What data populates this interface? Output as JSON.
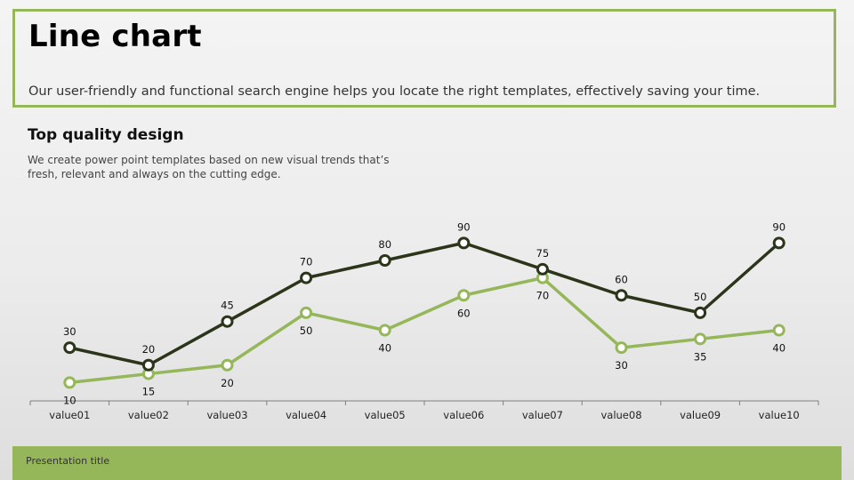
{
  "header": {
    "title": "Line chart",
    "subtitle": "Our user-friendly and functional search engine helps you locate the right templates, effectively saving your time."
  },
  "section": {
    "heading": "Top quality design",
    "body": "We create power point templates based on new visual trends that’s fresh, relevant and always on the cutting edge."
  },
  "footer": {
    "text": "Presentation title"
  },
  "colors": {
    "accent": "#95b75a",
    "dark_series": "#2b3519",
    "light_series": "#95b75a",
    "axis": "#7f7f7f"
  },
  "chart_data": {
    "type": "line",
    "categories": [
      "value01",
      "value02",
      "value03",
      "value04",
      "value05",
      "value06",
      "value07",
      "value08",
      "value09",
      "value10"
    ],
    "series": [
      {
        "values": [
          30,
          20,
          45,
          70,
          80,
          90,
          75,
          60,
          50,
          90
        ]
      },
      {
        "values": [
          10,
          15,
          20,
          50,
          40,
          60,
          70,
          30,
          35,
          40
        ]
      }
    ],
    "ylim": [
      0,
      100
    ],
    "grid": false,
    "legend": "none",
    "data_labels": true
  }
}
